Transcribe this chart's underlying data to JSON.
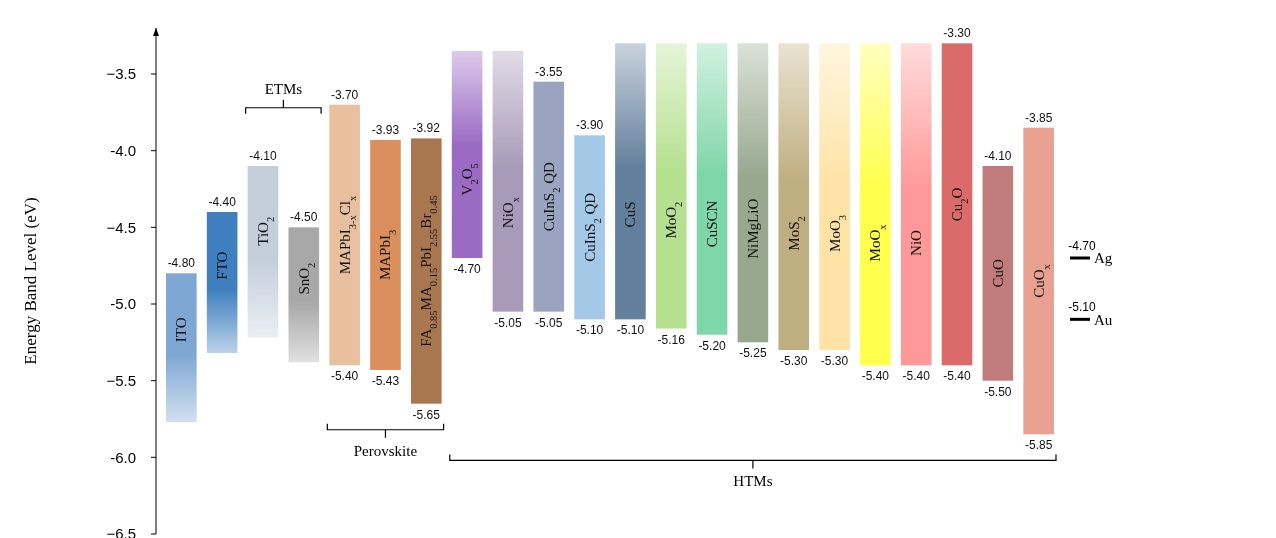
{
  "chart_data": {
    "type": "bar",
    "ylabel": "Energy Band Level (eV)",
    "categories": [
      "ITO",
      "FTO",
      "TiO$_{2}$",
      "SnO$_{2}$",
      "MAPbI$_{3-x}$Cl$_{x}$",
      "MAPbI$_{3}$",
      "FA$_{0.85}$MA$_{0.15}$PbI$_{2.55}$Br$_{0.45}$",
      "V$_{2}$O$_{5}$",
      "NiO$_{x}$",
      "CuInS$_{2}$ QD",
      "CuInS$_{2}$ QD",
      "CuS",
      "MoO$_{2}$",
      "CuSCN",
      "NiMgLiO",
      "MoS$_{2}$",
      "MoO$_{3}$",
      "MoO$_{x}$",
      "NiO",
      "Cu$_{2}$O",
      "CuO",
      "CuO$_{x}$"
    ],
    "base": [
      -5.77,
      -5.32,
      -5.22,
      -5.38,
      -5.4,
      -5.43,
      -5.65,
      -4.7,
      -5.05,
      -5.05,
      -5.1,
      -5.1,
      -5.16,
      -5.2,
      -5.25,
      -5.3,
      -5.3,
      -5.4,
      -5.4,
      -5.4,
      -5.5,
      -5.85
    ],
    "values": [
      0.97,
      0.92,
      1.12,
      0.88,
      1.7,
      1.5,
      1.73,
      1.35,
      1.7,
      1.5,
      1.2,
      1.8,
      1.86,
      1.9,
      1.95,
      2.0,
      2.0,
      2.1,
      2.1,
      2.1,
      1.4,
      2.0
    ],
    "colors": [
      "#7fa7d3",
      "#3f7fc0",
      "#c5cfdc",
      "#a8a8a8",
      "#e8c0a0",
      "#db8f5c",
      "#a9774f",
      "#9b6bc4",
      "#a89ab8",
      "#9aa3bf",
      "#a3c8e8",
      "#637f9c",
      "#b5e08f",
      "#7fd6a8",
      "#97a88e",
      "#bfae80",
      "#ffe3a6",
      "#ffff4d",
      "#ff9999",
      "#db6b6b",
      "#c07b7b",
      "#e8a090"
    ],
    "ylim": [
      -6.5,
      -3.2
    ],
    "yticks": [
      -6.5,
      {
        "value": -6,
        "label": "-6.0"
      },
      -5.5,
      {
        "value": -5,
        "label": "-5.0"
      },
      -4.5,
      {
        "value": -4,
        "label": "-4.0"
      },
      -3.5
    ],
    "grid": false,
    "ref_lines": [
      {
        "axis": "y",
        "value": -4.7,
        "label": "Ag",
        "color": "#000000"
      },
      {
        "axis": "y",
        "value": -5.1,
        "label": "Au",
        "color": "#000000"
      }
    ],
    "annotations": [
      "ETMs",
      "Perovskite",
      "HTMs",
      "-3.90",
      "-5.10",
      "-4.70",
      "-5.10",
      {
        "text": "-4.80",
        "x": "ITO",
        "y": -4.8
      },
      {
        "text": "-4.40",
        "x": "FTO",
        "y": -4.4
      },
      {
        "text": "-4.10",
        "x": "TiO$_{2}$",
        "y": -4.1
      },
      {
        "text": "-4.50",
        "x": "SnO$_{2}$",
        "y": -4.5
      },
      {
        "text": "-3.70",
        "x": "MAPbI$_{3-x}$Cl$_{x}$",
        "y": -3.7
      },
      {
        "text": "-5.40",
        "x": "MAPbI$_{3-x}$Cl$_{x}$",
        "y": -5.4
      },
      {
        "text": "-3.93",
        "x": "MAPbI$_{3}$",
        "y": -3.93
      },
      {
        "text": "-5.43",
        "x": "MAPbI$_{3}$",
        "y": -5.43
      },
      {
        "text": "-3.92",
        "x": "FA$_{0.85}$MA$_{0.15}$PbI$_{2.55}$Br$_{0.45}$",
        "y": -3.92
      },
      {
        "text": "-5.65",
        "x": "FA$_{0.85}$MA$_{0.15}$PbI$_{2.55}$Br$_{0.45}$",
        "y": -5.65
      },
      {
        "text": "-4.70",
        "x": "V$_{2}$O$_{5}$",
        "y": -4.7
      },
      {
        "text": "-5.05",
        "x": "NiO$_{x}$",
        "y": -5.05
      },
      {
        "text": "-3.55",
        "x": "CuInS$_{2}$ QD",
        "y": -3.55
      },
      {
        "text": "-5.05",
        "x": "CuInS$_{2}$ QD",
        "y": -5.05
      },
      {
        "text": "-5.10",
        "x": "CuS",
        "y": -5.1
      },
      {
        "text": "-5.16",
        "x": "MoO$_{2}$",
        "y": -5.16
      },
      {
        "text": "-5.20",
        "x": "CuSCN",
        "y": -5.2
      },
      {
        "text": "-5.25",
        "x": "NiMgLiO",
        "y": -5.25
      },
      {
        "text": "-5.30",
        "x": "MoS$_{2}$",
        "y": -5.3
      },
      {
        "text": "-5.30",
        "x": "MoO$_{3}$",
        "y": -5.3
      },
      {
        "text": "-5.40",
        "x": "MoO$_{x}$",
        "y": -5.4
      },
      {
        "text": "-5.40",
        "x": "NiO",
        "y": -5.4
      },
      {
        "text": "-3.30",
        "x": "Cu$_{2}$O",
        "y": -3.3
      },
      {
        "text": "-5.40",
        "x": "Cu$_{2}$O",
        "y": -5.4
      },
      {
        "text": "-4.10",
        "x": "CuO",
        "y": -4.1
      },
      {
        "text": "-5.50",
        "x": "CuO",
        "y": -5.5
      },
      {
        "text": "-3.85",
        "x": "CuO$_{x}$",
        "y": -3.85
      },
      {
        "text": "-5.85",
        "x": "CuO$_{x}$",
        "y": -5.85
      }
    ]
  }
}
